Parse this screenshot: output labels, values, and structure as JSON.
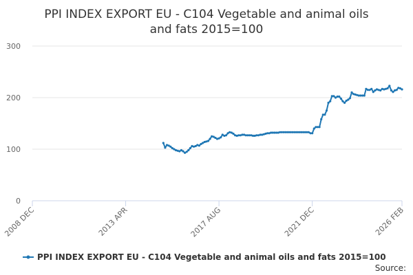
{
  "chart_data": {
    "type": "line",
    "title_lines": [
      "PPI INDEX EXPORT EU - C104 Vegetable and animal oils",
      "and fats 2015=100"
    ],
    "xlabel": "",
    "ylabel": "",
    "x_ticks": [
      "2008 DEC",
      "2013 APR",
      "2017 AUG",
      "2021 DEC",
      "2026 FEB"
    ],
    "xlim": [
      "2008-12",
      "2026-02"
    ],
    "ylim": [
      0,
      300
    ],
    "y_ticks": [
      0,
      100,
      200,
      300
    ],
    "grid": true,
    "legend_position": "bottom",
    "series_color": "#1f77b4",
    "series": [
      {
        "name": "PPI INDEX EXPORT EU - C104 Vegetable and animal oils and fats 2015=100",
        "points": [
          [
            "2015-01",
            112
          ],
          [
            "2015-02",
            103
          ],
          [
            "2015-03",
            108
          ],
          [
            "2015-04",
            107
          ],
          [
            "2015-05",
            105
          ],
          [
            "2015-06",
            102
          ],
          [
            "2015-07",
            100
          ],
          [
            "2015-08",
            98
          ],
          [
            "2015-09",
            97
          ],
          [
            "2015-10",
            96
          ],
          [
            "2015-11",
            98
          ],
          [
            "2015-12",
            96
          ],
          [
            "2016-01",
            93
          ],
          [
            "2016-02",
            95
          ],
          [
            "2016-03",
            98
          ],
          [
            "2016-04",
            102
          ],
          [
            "2016-05",
            106
          ],
          [
            "2016-06",
            105
          ],
          [
            "2016-07",
            106
          ],
          [
            "2016-08",
            108
          ],
          [
            "2016-09",
            107
          ],
          [
            "2016-10",
            110
          ],
          [
            "2016-11",
            112
          ],
          [
            "2016-12",
            114
          ],
          [
            "2017-01",
            115
          ],
          [
            "2017-02",
            116
          ],
          [
            "2017-03",
            120
          ],
          [
            "2017-04",
            125
          ],
          [
            "2017-05",
            124
          ],
          [
            "2017-06",
            122
          ],
          [
            "2017-07",
            120
          ],
          [
            "2017-08",
            121
          ],
          [
            "2017-09",
            123
          ],
          [
            "2017-10",
            128
          ],
          [
            "2017-11",
            126
          ],
          [
            "2017-12",
            127
          ],
          [
            "2018-01",
            131
          ],
          [
            "2018-02",
            133
          ],
          [
            "2018-03",
            132
          ],
          [
            "2018-04",
            130
          ],
          [
            "2018-05",
            127
          ],
          [
            "2018-06",
            126
          ],
          [
            "2018-07",
            127
          ],
          [
            "2018-08",
            127
          ],
          [
            "2018-09",
            128
          ],
          [
            "2018-10",
            128
          ],
          [
            "2018-11",
            127
          ],
          [
            "2018-12",
            127
          ],
          [
            "2019-01",
            127
          ],
          [
            "2019-02",
            127
          ],
          [
            "2019-03",
            126
          ],
          [
            "2019-04",
            126
          ],
          [
            "2019-05",
            127
          ],
          [
            "2019-06",
            127
          ],
          [
            "2019-07",
            128
          ],
          [
            "2019-08",
            128
          ],
          [
            "2019-09",
            129
          ],
          [
            "2019-10",
            130
          ],
          [
            "2019-11",
            131
          ],
          [
            "2019-12",
            131
          ],
          [
            "2020-01",
            132
          ],
          [
            "2020-02",
            132
          ],
          [
            "2020-03",
            132
          ],
          [
            "2020-04",
            132
          ],
          [
            "2020-05",
            132
          ],
          [
            "2020-06",
            133
          ],
          [
            "2020-07",
            133
          ],
          [
            "2020-08",
            133
          ],
          [
            "2020-09",
            133
          ],
          [
            "2020-10",
            133
          ],
          [
            "2020-11",
            133
          ],
          [
            "2020-12",
            133
          ],
          [
            "2021-01",
            133
          ],
          [
            "2021-02",
            133
          ],
          [
            "2021-03",
            133
          ],
          [
            "2021-04",
            133
          ],
          [
            "2021-05",
            133
          ],
          [
            "2021-06",
            133
          ],
          [
            "2021-07",
            133
          ],
          [
            "2021-08",
            133
          ],
          [
            "2021-09",
            133
          ],
          [
            "2021-10",
            133
          ],
          [
            "2021-11",
            131
          ],
          [
            "2021-12",
            131
          ],
          [
            "2022-01",
            140
          ],
          [
            "2022-02",
            143
          ],
          [
            "2022-03",
            143
          ],
          [
            "2022-04",
            143
          ],
          [
            "2022-05",
            158
          ],
          [
            "2022-06",
            167
          ],
          [
            "2022-07",
            167
          ],
          [
            "2022-08",
            175
          ],
          [
            "2022-09",
            190
          ],
          [
            "2022-10",
            193
          ],
          [
            "2022-11",
            203
          ],
          [
            "2022-12",
            203
          ],
          [
            "2023-01",
            200
          ],
          [
            "2023-02",
            202
          ],
          [
            "2023-03",
            202
          ],
          [
            "2023-04",
            198
          ],
          [
            "2023-05",
            193
          ],
          [
            "2023-06",
            190
          ],
          [
            "2023-07",
            194
          ],
          [
            "2023-08",
            196
          ],
          [
            "2023-09",
            199
          ],
          [
            "2023-10",
            210
          ],
          [
            "2023-11",
            207
          ],
          [
            "2023-12",
            206
          ],
          [
            "2024-01",
            205
          ],
          [
            "2024-02",
            204
          ],
          [
            "2024-03",
            204
          ],
          [
            "2024-04",
            204
          ],
          [
            "2024-05",
            204
          ],
          [
            "2024-06",
            217
          ],
          [
            "2024-07",
            215
          ],
          [
            "2024-08",
            215
          ],
          [
            "2024-09",
            217
          ],
          [
            "2024-10",
            211
          ],
          [
            "2024-11",
            214
          ],
          [
            "2024-12",
            216
          ],
          [
            "2025-01",
            215
          ],
          [
            "2025-02",
            214
          ],
          [
            "2025-03",
            217
          ],
          [
            "2025-04",
            216
          ],
          [
            "2025-05",
            217
          ],
          [
            "2025-06",
            218
          ],
          [
            "2025-07",
            223
          ],
          [
            "2025-08",
            214
          ],
          [
            "2025-09",
            211
          ],
          [
            "2025-10",
            214
          ],
          [
            "2025-11",
            215
          ],
          [
            "2025-12",
            219
          ],
          [
            "2026-01",
            218
          ],
          [
            "2026-02",
            216
          ]
        ]
      }
    ]
  },
  "credit": "Source:"
}
